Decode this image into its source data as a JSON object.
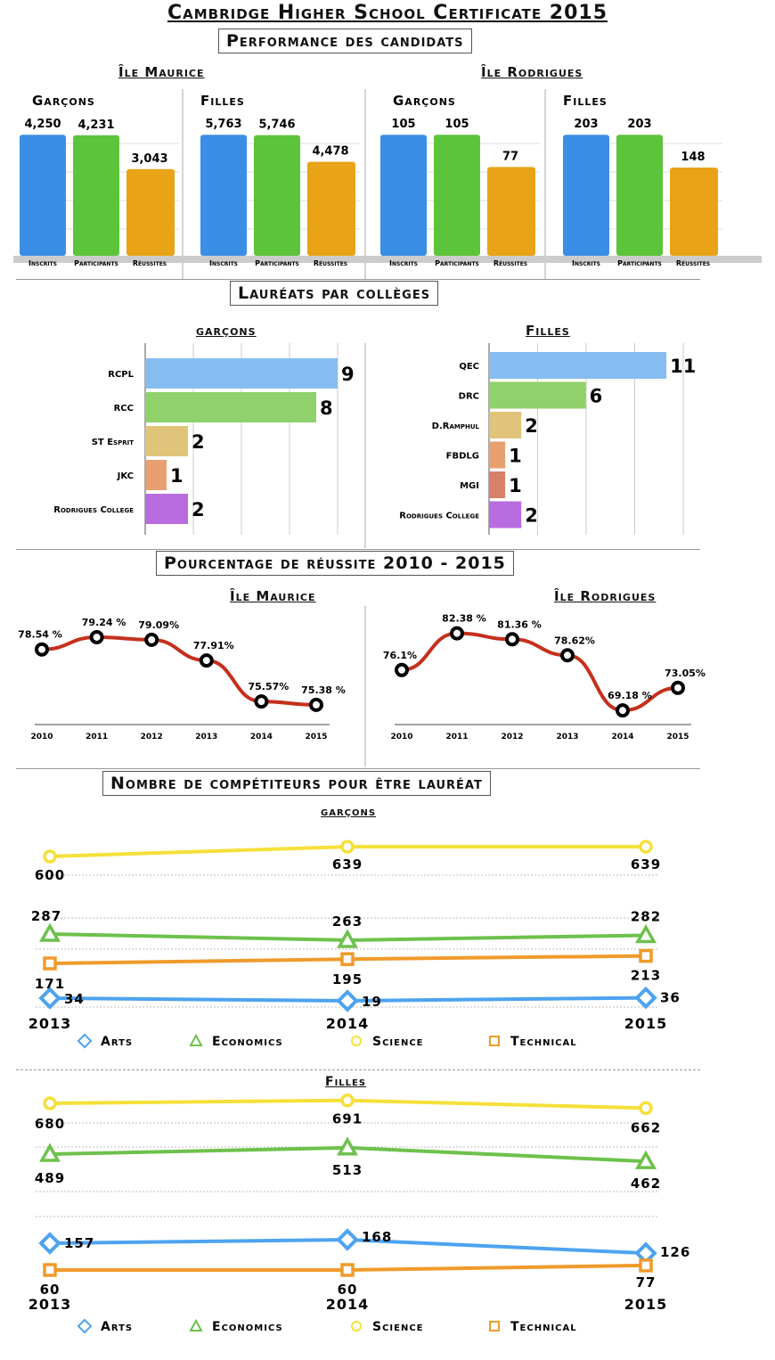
{
  "title": "Cambridge Higher School Certificate  2015",
  "section1": {
    "title": "Performance des candidats",
    "regions": [
      "Île Maurice",
      "Île Rodrigues"
    ]
  },
  "section2": {
    "title": "Lauréats par collèges",
    "boys_title": "garçons",
    "girls_title": "Filles"
  },
  "section3": {
    "title": "Pourcentage de réussite  2010 - 2015",
    "regions": [
      "Île Maurice",
      "Île Rodrigues"
    ]
  },
  "section4": {
    "title": "Nombre de compétiteurs pour être lauréat",
    "boys_title": "garçons",
    "girls_title": "Filles"
  },
  "colors": {
    "blue": "#3a8ee6",
    "green": "#5cc43a",
    "orange": "#e8a317",
    "arts": "#4da3f0",
    "econ": "#6dc14c",
    "sci": "#f5e03a",
    "tech": "#f09a2a",
    "red": "#c4301d"
  },
  "chart_data": [
    {
      "type": "bar",
      "id": "perf_maurice_garcons",
      "group": "Garçons",
      "categories": [
        "Inscrits",
        "Participants",
        "Réussites"
      ],
      "values": [
        4250,
        4231,
        3043
      ],
      "value_labels": [
        "4,250",
        "4,231",
        "3,043"
      ]
    },
    {
      "type": "bar",
      "id": "perf_maurice_filles",
      "group": "Filles",
      "categories": [
        "Inscrits",
        "Participants",
        "Réussites"
      ],
      "values": [
        5763,
        5746,
        4478
      ],
      "value_labels": [
        "5,763",
        "5,746",
        "4,478"
      ]
    },
    {
      "type": "bar",
      "id": "perf_rodrigues_garcons",
      "group": "Garçons",
      "categories": [
        "Inscrits",
        "Participants",
        "Réussites"
      ],
      "values": [
        105,
        105,
        77
      ],
      "value_labels": [
        "105",
        "105",
        "77"
      ]
    },
    {
      "type": "bar",
      "id": "perf_rodrigues_filles",
      "group": "Filles",
      "categories": [
        "Inscrits",
        "Participants",
        "Réussites"
      ],
      "values": [
        203,
        203,
        148
      ],
      "value_labels": [
        "203",
        "203",
        "148"
      ]
    },
    {
      "type": "bar",
      "id": "laureats_garcons",
      "orientation": "horizontal",
      "categories": [
        "RCPL",
        "RCC",
        "ST Esprit",
        "JKC",
        "Rodrigues College"
      ],
      "values": [
        9,
        8,
        2,
        1,
        2
      ],
      "colors": [
        "#85bdf0",
        "#8fd16a",
        "#e0c47a",
        "#e8a070",
        "#b86ce0"
      ]
    },
    {
      "type": "bar",
      "id": "laureats_filles",
      "orientation": "horizontal",
      "categories": [
        "QEC",
        "DRC",
        "D.Ramphul",
        "FBDLG",
        "MGI",
        "Rodrigues College"
      ],
      "values": [
        11,
        6,
        2,
        1,
        1,
        2
      ],
      "colors": [
        "#85bdf0",
        "#8fd16a",
        "#e0c47a",
        "#e8a070",
        "#d8806a",
        "#b86ce0"
      ]
    },
    {
      "type": "line",
      "id": "reussite_maurice",
      "x": [
        "2010",
        "2011",
        "2012",
        "2013",
        "2014",
        "2015"
      ],
      "values": [
        78.54,
        79.24,
        79.09,
        77.91,
        75.57,
        75.38
      ],
      "value_labels": [
        "78.54 %",
        "79.24 %",
        "79.09%",
        "77.91%",
        "75.57%",
        "75.38 %"
      ]
    },
    {
      "type": "line",
      "id": "reussite_rodrigues",
      "x": [
        "2010",
        "2011",
        "2012",
        "2013",
        "2014",
        "2015"
      ],
      "values": [
        76.1,
        82.38,
        81.36,
        78.62,
        69.18,
        73.05
      ],
      "value_labels": [
        "76.1%",
        "82.38 %",
        "81.36 %",
        "78.62%",
        "69.18 %",
        "73.05%"
      ]
    },
    {
      "type": "line",
      "id": "competiteurs_garcons",
      "x": [
        "2013",
        "2014",
        "2015"
      ],
      "series": [
        {
          "name": "Arts",
          "values": [
            34,
            19,
            36
          ]
        },
        {
          "name": "Economics",
          "values": [
            287,
            263,
            282
          ]
        },
        {
          "name": "Science",
          "values": [
            600,
            639,
            639
          ]
        },
        {
          "name": "Technical",
          "values": [
            171,
            195,
            213
          ]
        }
      ]
    },
    {
      "type": "line",
      "id": "competiteurs_filles",
      "x": [
        "2013",
        "2014",
        "2015"
      ],
      "series": [
        {
          "name": "Arts",
          "values": [
            157,
            168,
            126
          ]
        },
        {
          "name": "Economics",
          "values": [
            489,
            513,
            462
          ]
        },
        {
          "name": "Science",
          "values": [
            680,
            691,
            662
          ]
        },
        {
          "name": "Technical",
          "values": [
            60,
            60,
            77
          ]
        }
      ]
    }
  ]
}
